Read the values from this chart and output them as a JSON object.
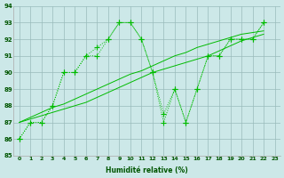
{
  "xlabel": "Humidité relative (%)",
  "background_color": "#cce8e8",
  "grid_color": "#99bbbb",
  "line_color": "#00bb00",
  "xlim": [
    -0.5,
    23.5
  ],
  "ylim": [
    85,
    94
  ],
  "yticks": [
    85,
    86,
    87,
    88,
    89,
    90,
    91,
    92,
    93,
    94
  ],
  "xticks": [
    0,
    1,
    2,
    3,
    4,
    5,
    6,
    7,
    8,
    9,
    10,
    11,
    12,
    13,
    14,
    15,
    16,
    17,
    18,
    19,
    20,
    21,
    22,
    23
  ],
  "series_dotted": [
    [
      86,
      87,
      87,
      88,
      90,
      90,
      91,
      91.5,
      92,
      93,
      93,
      92,
      90,
      87.5,
      89,
      87,
      89,
      91,
      91,
      92,
      92,
      92,
      93
    ],
    [
      86,
      87,
      87,
      88,
      90,
      90,
      91,
      91,
      92,
      93,
      93,
      92,
      90,
      87,
      89,
      87,
      89,
      91,
      91,
      92,
      92,
      92,
      93
    ]
  ],
  "series_line": [
    [
      87,
      87.2,
      87.4,
      87.6,
      87.8,
      88.0,
      88.2,
      88.5,
      88.8,
      89.1,
      89.4,
      89.7,
      90.0,
      90.2,
      90.4,
      90.6,
      90.8,
      91.0,
      91.3,
      91.6,
      91.9,
      92.1,
      92.3
    ],
    [
      87,
      87.3,
      87.6,
      87.9,
      88.1,
      88.4,
      88.7,
      89.0,
      89.3,
      89.6,
      89.9,
      90.1,
      90.4,
      90.7,
      91.0,
      91.2,
      91.5,
      91.7,
      91.9,
      92.1,
      92.3,
      92.4,
      92.5
    ]
  ]
}
